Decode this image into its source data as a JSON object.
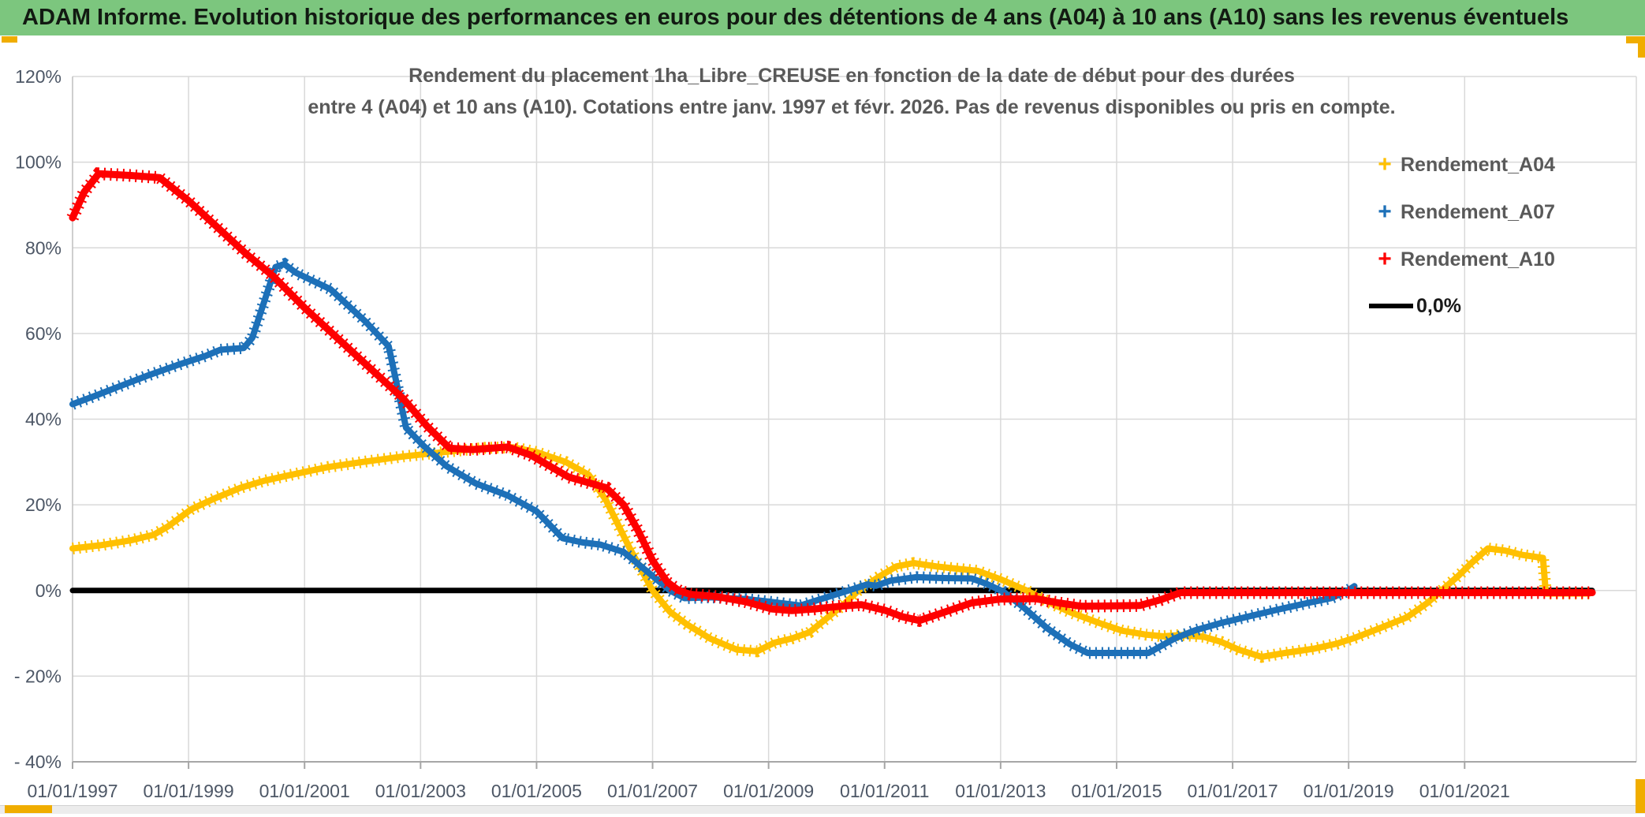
{
  "window": {
    "title": "ADAM Informe. Evolution historique des performances en euros pour des détentions de 4 ans (A04) à 10 ans (A10) sans les revenus éventuels",
    "title_bar_color": "#7cc67e",
    "title_text_color": "#121a12",
    "accent_gold": "#f0ad00"
  },
  "chart_data": {
    "type": "line",
    "title_line1": "Rendement du placement 1ha_Libre_CREUSE en fonction de la date de début pour des durées",
    "title_line2": "entre 4 (A04) et 10 ans (A10). Cotations entre janv. 1997 et févr. 2026. Pas de revenus disponibles ou pris en compte.",
    "title_color": "#595959",
    "xlabel": "",
    "ylabel": "",
    "x_domain": [
      1997.0,
      2023.96
    ],
    "ylim": [
      -40,
      120
    ],
    "grid": true,
    "grid_color": "#d9d9d9",
    "tick_color": "#4d5766",
    "legend_position": "inside-top-right",
    "y_ticks": [
      {
        "v": 120,
        "label": "120%"
      },
      {
        "v": 100,
        "label": "100%"
      },
      {
        "v": 80,
        "label": "80%"
      },
      {
        "v": 60,
        "label": "60%"
      },
      {
        "v": 40,
        "label": "40%"
      },
      {
        "v": 20,
        "label": "20%"
      },
      {
        "v": 0,
        "label": "0%"
      },
      {
        "v": -20,
        "label": "- 20%"
      },
      {
        "v": -40,
        "label": "- 40%"
      }
    ],
    "x_ticks": [
      {
        "year": 1997,
        "label": "01/01/1997"
      },
      {
        "year": 1999,
        "label": "01/01/1999"
      },
      {
        "year": 2001,
        "label": "01/01/2001"
      },
      {
        "year": 2003,
        "label": "01/01/2003"
      },
      {
        "year": 2005,
        "label": "01/01/2005"
      },
      {
        "year": 2007,
        "label": "01/01/2007"
      },
      {
        "year": 2009,
        "label": "01/01/2009"
      },
      {
        "year": 2011,
        "label": "01/01/2011"
      },
      {
        "year": 2013,
        "label": "01/01/2013"
      },
      {
        "year": 2015,
        "label": "01/01/2015"
      },
      {
        "year": 2017,
        "label": "01/01/2017"
      },
      {
        "year": 2019,
        "label": "01/01/2019"
      },
      {
        "year": 2021,
        "label": "01/01/2021"
      }
    ],
    "series": [
      {
        "name": "0,0%",
        "color": "#000000",
        "marker": "line",
        "width": 7,
        "fuzz": false,
        "points": [
          [
            1997.0,
            0
          ],
          [
            2023.2,
            0
          ]
        ]
      },
      {
        "name": "Rendement_A04",
        "color": "#ffc000",
        "marker": "+",
        "width": 8,
        "fuzz": true,
        "points": [
          [
            1997.0,
            9.8
          ],
          [
            1997.5,
            10.6
          ],
          [
            1998.0,
            11.7
          ],
          [
            1998.4,
            13.0
          ],
          [
            1998.65,
            15.0
          ],
          [
            1999.05,
            19.0
          ],
          [
            1999.45,
            21.5
          ],
          [
            1999.9,
            24.0
          ],
          [
            2000.3,
            25.6
          ],
          [
            2000.7,
            26.8
          ],
          [
            2001.4,
            28.8
          ],
          [
            2002.0,
            30.0
          ],
          [
            2002.7,
            31.3
          ],
          [
            2003.4,
            32.3
          ],
          [
            2004.1,
            33.3
          ],
          [
            2004.6,
            33.4
          ],
          [
            2005.0,
            32.3
          ],
          [
            2005.5,
            30.0
          ],
          [
            2005.9,
            27.0
          ],
          [
            2006.2,
            21.0
          ],
          [
            2006.6,
            10.0
          ],
          [
            2007.0,
            0.0
          ],
          [
            2007.3,
            -5.0
          ],
          [
            2007.6,
            -8.0
          ],
          [
            2008.0,
            -11.3
          ],
          [
            2008.45,
            -13.8
          ],
          [
            2008.8,
            -14.2
          ],
          [
            2009.1,
            -12.2
          ],
          [
            2009.4,
            -11.2
          ],
          [
            2009.7,
            -9.8
          ],
          [
            2010.0,
            -6.5
          ],
          [
            2010.3,
            -3.2
          ],
          [
            2010.55,
            0.0
          ],
          [
            2010.9,
            3.2
          ],
          [
            2011.2,
            5.6
          ],
          [
            2011.5,
            6.4
          ],
          [
            2011.9,
            5.6
          ],
          [
            2012.3,
            5.0
          ],
          [
            2012.6,
            4.6
          ],
          [
            2013.0,
            2.6
          ],
          [
            2013.45,
            0.0
          ],
          [
            2013.9,
            -3.2
          ],
          [
            2014.2,
            -5.1
          ],
          [
            2014.7,
            -7.6
          ],
          [
            2015.1,
            -9.4
          ],
          [
            2015.5,
            -10.3
          ],
          [
            2015.8,
            -10.7
          ],
          [
            2016.1,
            -10.4
          ],
          [
            2016.5,
            -10.8
          ],
          [
            2016.8,
            -12.0
          ],
          [
            2017.1,
            -13.8
          ],
          [
            2017.5,
            -15.5
          ],
          [
            2017.9,
            -14.6
          ],
          [
            2018.4,
            -13.6
          ],
          [
            2018.8,
            -12.4
          ],
          [
            2019.1,
            -11.1
          ],
          [
            2019.5,
            -9.0
          ],
          [
            2020.0,
            -6.3
          ],
          [
            2020.35,
            -3.0
          ],
          [
            2020.6,
            0.0
          ],
          [
            2020.9,
            3.5
          ],
          [
            2021.1,
            6.2
          ],
          [
            2021.4,
            9.8
          ],
          [
            2021.7,
            9.3
          ],
          [
            2022.0,
            8.3
          ],
          [
            2022.35,
            7.6
          ],
          [
            2022.4,
            -0.7
          ],
          [
            2023.15,
            -0.7
          ]
        ]
      },
      {
        "name": "Rendement_A07",
        "color": "#1d70b8",
        "marker": "+",
        "width": 8,
        "fuzz": true,
        "points": [
          [
            1997.0,
            43.5
          ],
          [
            1997.4,
            45.5
          ],
          [
            1997.8,
            47.6
          ],
          [
            1998.3,
            50.2
          ],
          [
            1998.8,
            52.6
          ],
          [
            1999.3,
            54.8
          ],
          [
            1999.55,
            56.2
          ],
          [
            1999.95,
            56.6
          ],
          [
            2000.1,
            59.0
          ],
          [
            2000.5,
            75.5
          ],
          [
            2000.65,
            76.2
          ],
          [
            2000.85,
            74.2
          ],
          [
            2001.45,
            70.3
          ],
          [
            2002.05,
            62.8
          ],
          [
            2002.45,
            57.0
          ],
          [
            2002.75,
            38.0
          ],
          [
            2003.05,
            33.8
          ],
          [
            2003.45,
            29.0
          ],
          [
            2003.95,
            25.0
          ],
          [
            2004.5,
            22.2
          ],
          [
            2005.0,
            18.5
          ],
          [
            2005.45,
            12.2
          ],
          [
            2005.8,
            11.2
          ],
          [
            2006.1,
            10.7
          ],
          [
            2006.5,
            9.0
          ],
          [
            2006.9,
            4.5
          ],
          [
            2007.3,
            0.0
          ],
          [
            2007.55,
            -1.8
          ],
          [
            2008.0,
            -1.6
          ],
          [
            2008.6,
            -2.0
          ],
          [
            2009.0,
            -2.6
          ],
          [
            2009.55,
            -3.5
          ],
          [
            2010.0,
            -1.6
          ],
          [
            2010.45,
            0.3
          ],
          [
            2010.7,
            1.4
          ],
          [
            2010.85,
            1.1
          ],
          [
            2011.1,
            2.3
          ],
          [
            2011.55,
            3.1
          ],
          [
            2012.0,
            2.9
          ],
          [
            2012.5,
            2.8
          ],
          [
            2012.75,
            1.6
          ],
          [
            2013.05,
            -0.3
          ],
          [
            2013.4,
            -4.0
          ],
          [
            2013.8,
            -8.8
          ],
          [
            2014.2,
            -12.6
          ],
          [
            2014.5,
            -14.6
          ],
          [
            2015.55,
            -14.6
          ],
          [
            2016.0,
            -11.2
          ],
          [
            2016.35,
            -9.3
          ],
          [
            2016.8,
            -7.6
          ],
          [
            2017.2,
            -6.3
          ],
          [
            2017.8,
            -4.4
          ],
          [
            2018.3,
            -2.9
          ],
          [
            2018.7,
            -1.8
          ],
          [
            2018.95,
            -0.3
          ],
          [
            2019.1,
            1.0
          ]
        ]
      },
      {
        "name": "Rendement_A10",
        "color": "#fe0000",
        "marker": "+",
        "width": 9,
        "fuzz": true,
        "points": [
          [
            1997.0,
            87.0
          ],
          [
            1997.2,
            93.0
          ],
          [
            1997.45,
            97.3
          ],
          [
            1998.0,
            96.9
          ],
          [
            1998.5,
            96.4
          ],
          [
            1999.0,
            91.0
          ],
          [
            2000.0,
            78.5
          ],
          [
            2000.45,
            73.5
          ],
          [
            2001.0,
            66.0
          ],
          [
            2002.0,
            53.5
          ],
          [
            2002.7,
            44.8
          ],
          [
            2003.1,
            38.5
          ],
          [
            2003.5,
            33.2
          ],
          [
            2003.9,
            32.9
          ],
          [
            2004.5,
            33.5
          ],
          [
            2004.9,
            31.6
          ],
          [
            2005.55,
            26.5
          ],
          [
            2006.2,
            24.0
          ],
          [
            2006.5,
            20.0
          ],
          [
            2006.75,
            14.0
          ],
          [
            2007.0,
            7.0
          ],
          [
            2007.25,
            2.0
          ],
          [
            2007.45,
            0.0
          ],
          [
            2007.65,
            -0.9
          ],
          [
            2008.1,
            -1.4
          ],
          [
            2008.6,
            -2.6
          ],
          [
            2009.05,
            -4.3
          ],
          [
            2009.4,
            -4.7
          ],
          [
            2009.8,
            -4.3
          ],
          [
            2010.3,
            -3.6
          ],
          [
            2010.6,
            -3.3
          ],
          [
            2011.0,
            -4.6
          ],
          [
            2011.3,
            -6.1
          ],
          [
            2011.6,
            -7.0
          ],
          [
            2012.0,
            -5.2
          ],
          [
            2012.5,
            -2.9
          ],
          [
            2013.0,
            -2.0
          ],
          [
            2013.6,
            -1.9
          ],
          [
            2014.0,
            -2.9
          ],
          [
            2014.4,
            -3.7
          ],
          [
            2015.4,
            -3.5
          ],
          [
            2015.75,
            -2.2
          ],
          [
            2016.1,
            -0.5
          ],
          [
            2023.2,
            -0.5
          ]
        ]
      }
    ],
    "legend": [
      {
        "label": "Rendement_A04",
        "marker": "+",
        "color": "#ffc000",
        "text_color": "#595959"
      },
      {
        "label": "Rendement_A07",
        "marker": "+",
        "color": "#1d70b8",
        "text_color": "#595959"
      },
      {
        "label": "Rendement_A10",
        "marker": "+",
        "color": "#fe0000",
        "text_color": "#595959"
      },
      {
        "label": "0,0%",
        "marker": "swatch",
        "color": "#000000",
        "text_color": "#1a1a1a"
      }
    ]
  }
}
